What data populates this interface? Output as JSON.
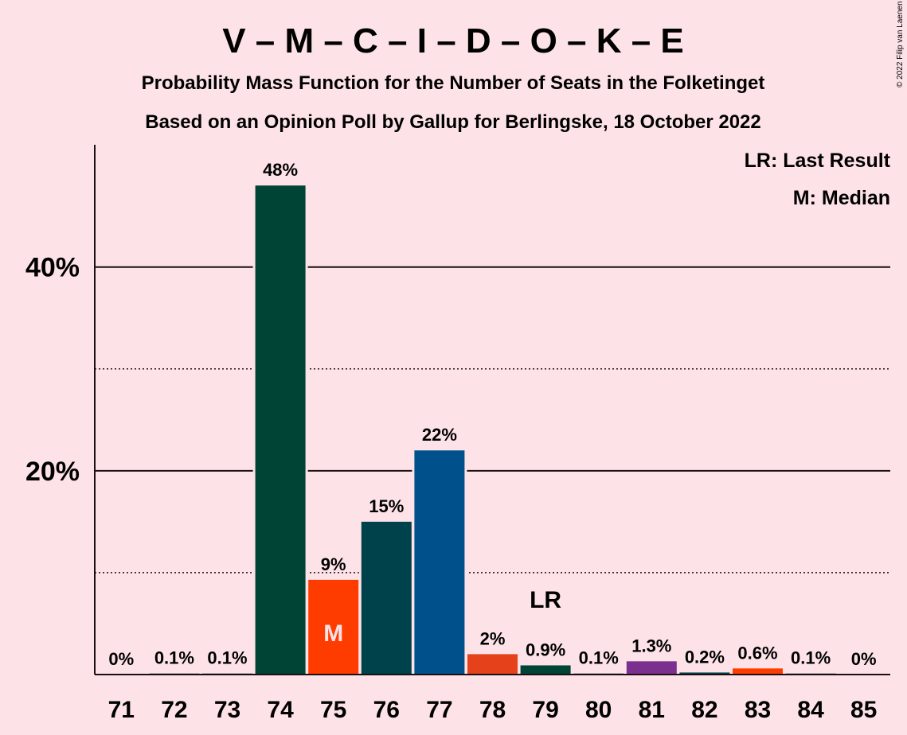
{
  "header": {
    "title": "V – M – C – I – D – O – K – E",
    "subtitle1": "Probability Mass Function for the Number of Seats in the Folketinget",
    "subtitle2": "Based on an Opinion Poll by Gallup for Berlingske, 18 October 2022",
    "copyright": "© 2022 Filip van Laenen"
  },
  "legend": {
    "last_result": "LR: Last Result",
    "median": "M: Median"
  },
  "chart_data": {
    "type": "bar",
    "categories": [
      "71",
      "72",
      "73",
      "74",
      "75",
      "76",
      "77",
      "78",
      "79",
      "80",
      "81",
      "82",
      "83",
      "84",
      "85"
    ],
    "values": [
      0,
      0.1,
      0.1,
      48,
      9.3,
      15,
      22,
      2,
      0.9,
      0.1,
      1.3,
      0.2,
      0.6,
      0.1,
      0
    ],
    "value_labels": [
      "0%",
      "0.1%",
      "0.1%",
      "48%",
      "9%",
      "15%",
      "22%",
      "2%",
      "0.9%",
      "0.1%",
      "1.3%",
      "0.2%",
      "0.6%",
      "0.1%",
      "0%"
    ],
    "bar_colors": [
      "#004435",
      "#004435",
      "#004435",
      "#004435",
      "#FF3C00",
      "#00424B",
      "#00508C",
      "#E5421C",
      "#004435",
      "#004435",
      "#7B2F8E",
      "#00424B",
      "#FF3C00",
      "#004435",
      "#004435"
    ],
    "ylim": [
      0,
      52
    ],
    "yticks": [
      20,
      40
    ],
    "ytick_labels": [
      "20%",
      "40%"
    ],
    "minor_grid": [
      10,
      30
    ],
    "median_seat": "75",
    "median_label": "M",
    "last_result_seat": "79",
    "last_result_label": "LR",
    "grid": true,
    "legend_position": "top-right"
  }
}
